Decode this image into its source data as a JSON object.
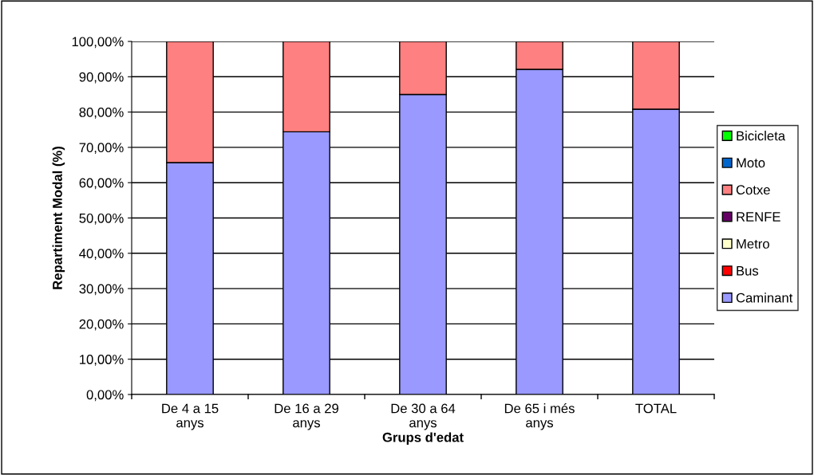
{
  "chart_data": {
    "type": "bar",
    "stacked": true,
    "xlabel": "Grups d'edat",
    "ylabel": "Repartiment Modal (%)",
    "categories": [
      "De 4 a 15\nanys",
      "De 16 a 29\nanys",
      "De 30 a 64\nanys",
      "De 65 i més\nanys",
      "TOTAL"
    ],
    "series": [
      {
        "name": "Caminant",
        "color": "#9999ff",
        "values": [
          65.7,
          74.4,
          85.0,
          92.1,
          80.8
        ]
      },
      {
        "name": "Bus",
        "color": "#ff0000",
        "values": [
          0,
          0,
          0,
          0,
          0
        ]
      },
      {
        "name": "Metro",
        "color": "#ffffcc",
        "values": [
          0,
          0,
          0,
          0,
          0
        ]
      },
      {
        "name": "RENFE",
        "color": "#660066",
        "values": [
          0,
          0,
          0,
          0,
          0
        ]
      },
      {
        "name": "Cotxe",
        "color": "#ff8080",
        "values": [
          34.3,
          25.6,
          15.0,
          7.9,
          19.2
        ]
      },
      {
        "name": "Moto",
        "color": "#0066cc",
        "values": [
          0,
          0,
          0,
          0,
          0
        ]
      },
      {
        "name": "Bicicleta",
        "color": "#00ff00",
        "values": [
          0,
          0,
          0,
          0,
          0
        ]
      }
    ],
    "ylim": [
      0,
      100
    ],
    "yticks": [
      {
        "value": 0,
        "label": "0,00%"
      },
      {
        "value": 10,
        "label": "10,00%"
      },
      {
        "value": 20,
        "label": "20,00%"
      },
      {
        "value": 30,
        "label": "30,00%"
      },
      {
        "value": 40,
        "label": "40,00%"
      },
      {
        "value": 50,
        "label": "50,00%"
      },
      {
        "value": 60,
        "label": "60,00%"
      },
      {
        "value": 70,
        "label": "70,00%"
      },
      {
        "value": 80,
        "label": "80,00%"
      },
      {
        "value": 90,
        "label": "90,00%"
      },
      {
        "value": 100,
        "label": "100,00%"
      }
    ],
    "grid": "y",
    "legend": "right"
  }
}
